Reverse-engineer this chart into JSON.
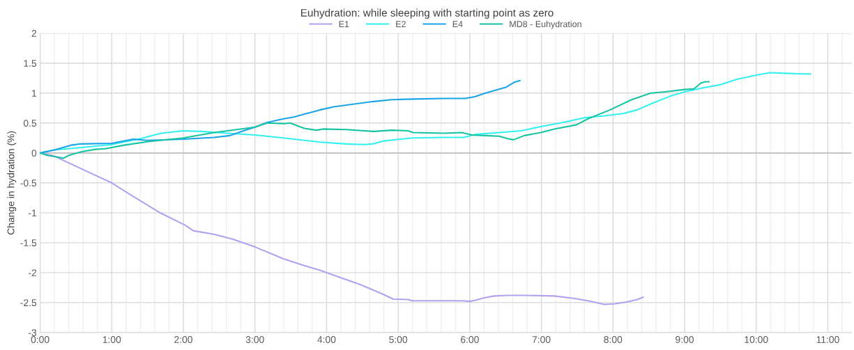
{
  "chart_data": {
    "type": "line",
    "title": "Euhydration: while sleeping with starting point as zero",
    "ylabel": "Change in hydration (%)",
    "xlim": [
      0,
      11.33
    ],
    "ylim": [
      -3,
      2
    ],
    "yticks": [
      -3,
      -2.5,
      -2,
      -1.5,
      -1,
      -0.5,
      0,
      0.5,
      1,
      1.5,
      2
    ],
    "xticks": [
      {
        "value": 0,
        "label": "0:00"
      },
      {
        "value": 0.2,
        "label": null
      },
      {
        "value": 0.4,
        "label": null
      },
      {
        "value": 0.6,
        "label": null
      },
      {
        "value": 0.8,
        "label": null
      },
      {
        "value": 1,
        "label": "1:00"
      },
      {
        "value": 1.2,
        "label": null
      },
      {
        "value": 1.4,
        "label": null
      },
      {
        "value": 1.6,
        "label": null
      },
      {
        "value": 1.8,
        "label": null
      },
      {
        "value": 2,
        "label": "2:00"
      },
      {
        "value": 2.2,
        "label": null
      },
      {
        "value": 2.4,
        "label": null
      },
      {
        "value": 2.6,
        "label": null
      },
      {
        "value": 2.8,
        "label": null
      },
      {
        "value": 3,
        "label": "3:00"
      },
      {
        "value": 3.2,
        "label": null
      },
      {
        "value": 3.4,
        "label": null
      },
      {
        "value": 3.6,
        "label": null
      },
      {
        "value": 3.8,
        "label": null
      },
      {
        "value": 4,
        "label": "4:00"
      },
      {
        "value": 4.2,
        "label": null
      },
      {
        "value": 4.4,
        "label": null
      },
      {
        "value": 4.6,
        "label": null
      },
      {
        "value": 4.8,
        "label": null
      },
      {
        "value": 5,
        "label": "5:00"
      },
      {
        "value": 5.2,
        "label": null
      },
      {
        "value": 5.4,
        "label": null
      },
      {
        "value": 5.6,
        "label": null
      },
      {
        "value": 5.8,
        "label": null
      },
      {
        "value": 6,
        "label": "6:00"
      },
      {
        "value": 6.2,
        "label": null
      },
      {
        "value": 6.4,
        "label": null
      },
      {
        "value": 6.6,
        "label": null
      },
      {
        "value": 6.8,
        "label": null
      },
      {
        "value": 7,
        "label": "7:00"
      },
      {
        "value": 7.2,
        "label": null
      },
      {
        "value": 7.4,
        "label": null
      },
      {
        "value": 7.6,
        "label": null
      },
      {
        "value": 7.8,
        "label": null
      },
      {
        "value": 8,
        "label": "8:00"
      },
      {
        "value": 8.2,
        "label": null
      },
      {
        "value": 8.4,
        "label": null
      },
      {
        "value": 8.6,
        "label": null
      },
      {
        "value": 8.8,
        "label": null
      },
      {
        "value": 9,
        "label": "9:00"
      },
      {
        "value": 9.2,
        "label": null
      },
      {
        "value": 9.4,
        "label": null
      },
      {
        "value": 9.6,
        "label": null
      },
      {
        "value": 9.8,
        "label": null
      },
      {
        "value": 10,
        "label": "10:00"
      },
      {
        "value": 10.2,
        "label": null
      },
      {
        "value": 10.4,
        "label": null
      },
      {
        "value": 10.6,
        "label": null
      },
      {
        "value": 10.8,
        "label": null
      },
      {
        "value": 11,
        "label": "11:00"
      },
      {
        "value": 11.2,
        "label": null
      }
    ],
    "grid": true,
    "legend": "top",
    "marker": "none",
    "line_style": "solid",
    "ref_lines": [
      {
        "axis": "y",
        "value": 0,
        "color": "#bfbfbf"
      }
    ],
    "series": [
      {
        "name": "E1",
        "color": "#b4a0f0",
        "x": [
          0,
          0.19,
          1.0,
          1.25,
          1.66,
          2.03,
          2.14,
          2.43,
          2.69,
          3.0,
          3.4,
          3.66,
          3.91,
          4.21,
          4.47,
          4.77,
          4.93,
          5.14,
          5.19,
          5.64,
          5.89,
          6.0,
          6.08,
          6.2,
          6.34,
          6.53,
          6.8,
          7.18,
          7.45,
          7.65,
          7.88,
          8.03,
          8.19,
          8.34,
          8.42
        ],
        "values": [
          0,
          -0.05,
          -0.5,
          -0.69,
          -0.99,
          -1.21,
          -1.3,
          -1.36,
          -1.44,
          -1.57,
          -1.77,
          -1.87,
          -1.96,
          -2.09,
          -2.2,
          -2.35,
          -2.44,
          -2.45,
          -2.47,
          -2.47,
          -2.47,
          -2.48,
          -2.46,
          -2.42,
          -2.39,
          -2.38,
          -2.38,
          -2.39,
          -2.43,
          -2.47,
          -2.53,
          -2.52,
          -2.49,
          -2.45,
          -2.41
        ]
      },
      {
        "name": "E2",
        "color": "#33f0f0",
        "x": [
          0,
          0.2,
          0.58,
          1.0,
          1.4,
          1.69,
          2.0,
          2.25,
          2.62,
          3.0,
          3.4,
          3.91,
          4.28,
          4.53,
          4.64,
          4.8,
          5.03,
          5.21,
          5.64,
          5.91,
          6.08,
          6.41,
          6.72,
          6.99,
          7.3,
          7.61,
          7.88,
          8.15,
          8.34,
          8.53,
          8.8,
          9.0,
          9.27,
          9.5,
          9.73,
          10.0,
          10.19,
          10.42,
          10.65,
          10.76
        ],
        "values": [
          0,
          0.05,
          0.09,
          0.14,
          0.24,
          0.33,
          0.37,
          0.36,
          0.33,
          0.3,
          0.25,
          0.18,
          0.15,
          0.14,
          0.15,
          0.2,
          0.23,
          0.25,
          0.26,
          0.26,
          0.31,
          0.34,
          0.37,
          0.44,
          0.51,
          0.59,
          0.62,
          0.66,
          0.72,
          0.82,
          0.95,
          1.02,
          1.09,
          1.14,
          1.23,
          1.3,
          1.34,
          1.33,
          1.32,
          1.32
        ]
      },
      {
        "name": "E4",
        "color": "#1aa3e6",
        "x": [
          0,
          0.2,
          0.43,
          0.55,
          1.0,
          1.3,
          1.5,
          2.0,
          2.43,
          2.65,
          2.84,
          3.0,
          3.17,
          3.4,
          3.54,
          3.69,
          3.91,
          4.1,
          4.28,
          4.66,
          4.91,
          5.21,
          5.64,
          5.93,
          6.07,
          6.22,
          6.39,
          6.51,
          6.62,
          6.7
        ],
        "values": [
          0,
          0.05,
          0.13,
          0.15,
          0.16,
          0.23,
          0.21,
          0.23,
          0.26,
          0.29,
          0.37,
          0.43,
          0.51,
          0.57,
          0.6,
          0.65,
          0.72,
          0.77,
          0.8,
          0.86,
          0.89,
          0.9,
          0.91,
          0.91,
          0.94,
          1.0,
          1.06,
          1.1,
          1.18,
          1.21
        ]
      },
      {
        "name": "MD8 - Euhydration",
        "color": "#17c3a0",
        "x": [
          0,
          0.1,
          0.25,
          0.32,
          0.4,
          0.58,
          0.77,
          0.91,
          1.0,
          1.17,
          1.51,
          2.0,
          2.43,
          3.0,
          3.17,
          3.4,
          3.49,
          3.58,
          3.69,
          3.86,
          3.95,
          4.28,
          4.66,
          4.91,
          5.14,
          5.21,
          5.64,
          5.89,
          6.03,
          6.22,
          6.41,
          6.53,
          6.61,
          6.76,
          6.99,
          7.18,
          7.49,
          7.65,
          7.96,
          8.26,
          8.53,
          8.73,
          9.0,
          9.13,
          9.23,
          9.29,
          9.34
        ],
        "values": [
          0,
          -0.04,
          -0.07,
          -0.09,
          -0.04,
          0.02,
          0.06,
          0.07,
          0.09,
          0.13,
          0.19,
          0.25,
          0.34,
          0.43,
          0.5,
          0.49,
          0.5,
          0.46,
          0.41,
          0.38,
          0.4,
          0.39,
          0.36,
          0.38,
          0.37,
          0.34,
          0.33,
          0.34,
          0.3,
          0.29,
          0.28,
          0.24,
          0.22,
          0.29,
          0.34,
          0.4,
          0.47,
          0.57,
          0.72,
          0.89,
          1.0,
          1.02,
          1.06,
          1.07,
          1.17,
          1.19,
          1.19
        ]
      }
    ]
  }
}
